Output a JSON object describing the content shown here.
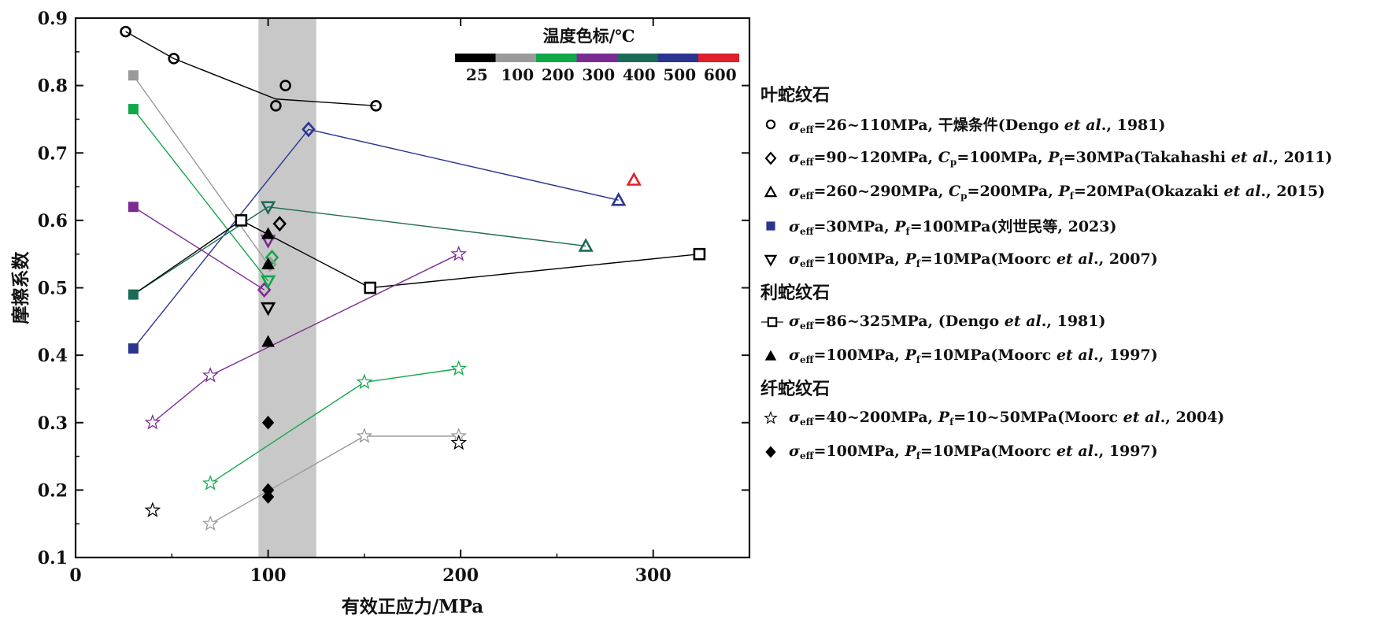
{
  "chart_data": {
    "type": "scatter",
    "xlabel": "有效正应力/MPa",
    "ylabel": "摩擦系数",
    "xlim": [
      0,
      350
    ],
    "ylim": [
      0.1,
      0.9
    ],
    "xticks": [
      0,
      100,
      200,
      300
    ],
    "yticks": [
      0.1,
      0.2,
      0.3,
      0.4,
      0.5,
      0.6,
      0.7,
      0.8,
      0.9
    ],
    "shaded_band": {
      "x": [
        95,
        125
      ]
    },
    "colorbar": {
      "title": "温度色标/℃",
      "labels": [
        "25",
        "100",
        "200",
        "300",
        "400",
        "500",
        "600"
      ],
      "colors": [
        "#000000",
        "#9a9a9a",
        "#11a84a",
        "#7b2c92",
        "#1c6b58",
        "#2a3590",
        "#e0202a"
      ]
    },
    "series": [
      {
        "marker": "circle",
        "color": "#000000",
        "temp": "25",
        "points": [
          [
            26,
            0.88
          ],
          [
            51,
            0.84
          ],
          [
            109,
            0.8
          ],
          [
            104,
            0.77
          ],
          [
            156,
            0.77
          ]
        ],
        "line": [
          [
            26,
            0.88
          ],
          [
            51,
            0.84
          ],
          [
            104,
            0.78
          ],
          [
            156,
            0.77
          ]
        ]
      },
      {
        "marker": "diamond",
        "color": "#2a3590",
        "temp": "500",
        "points": [
          [
            121,
            0.735
          ]
        ]
      },
      {
        "marker": "diamond",
        "color": "#000000",
        "temp": "25",
        "points": [
          [
            106,
            0.595
          ]
        ]
      },
      {
        "marker": "diamond",
        "color": "#11a84a",
        "temp": "200",
        "points": [
          [
            102,
            0.545
          ]
        ]
      },
      {
        "marker": "diamond",
        "color": "#9a9a9a",
        "temp": "100",
        "points": [
          [
            101,
            0.535
          ]
        ]
      },
      {
        "marker": "diamond",
        "color": "#7b2c92",
        "temp": "300",
        "points": [
          [
            98,
            0.497
          ]
        ]
      },
      {
        "marker": "triangle",
        "color": "#2a3590",
        "temp": "500",
        "points": [
          [
            282,
            0.63
          ]
        ]
      },
      {
        "marker": "triangle",
        "color": "#1c6b58",
        "temp": "400",
        "points": [
          [
            265,
            0.562
          ]
        ]
      },
      {
        "marker": "triangle",
        "color": "#e0202a",
        "temp": "600",
        "points": [
          [
            290,
            0.66
          ]
        ]
      },
      {
        "marker": "square",
        "color": "#2a3590",
        "temp": "500",
        "points": [
          [
            30,
            0.41
          ]
        ],
        "line": [
          [
            30,
            0.41
          ],
          [
            121,
            0.735
          ],
          [
            282,
            0.63
          ]
        ]
      },
      {
        "marker": "square",
        "color": "#1c6b58",
        "temp": "400",
        "points": [
          [
            30,
            0.49
          ]
        ],
        "line": [
          [
            30,
            0.49
          ],
          [
            100,
            0.62
          ],
          [
            265,
            0.562
          ]
        ]
      },
      {
        "marker": "square",
        "color": "#7b2c92",
        "temp": "300",
        "points": [
          [
            30,
            0.62
          ]
        ],
        "line": [
          [
            30,
            0.62
          ],
          [
            98,
            0.497
          ]
        ]
      },
      {
        "marker": "square",
        "color": "#11a84a",
        "temp": "200",
        "points": [
          [
            30,
            0.765
          ]
        ],
        "line": [
          [
            30,
            0.765
          ],
          [
            100,
            0.51
          ]
        ]
      },
      {
        "marker": "square",
        "color": "#9a9a9a",
        "temp": "100",
        "points": [
          [
            30,
            0.815
          ]
        ],
        "line": [
          [
            30,
            0.815
          ],
          [
            100,
            0.535
          ]
        ]
      },
      {
        "marker": "triangle-down",
        "color": "#1c6b58",
        "temp": "400",
        "points": [
          [
            100,
            0.62
          ]
        ]
      },
      {
        "marker": "triangle-down",
        "color": "#11a84a",
        "temp": "200",
        "points": [
          [
            100,
            0.51
          ]
        ]
      },
      {
        "marker": "triangle-down",
        "color": "#7b2c92",
        "temp": "300",
        "points": [
          [
            100,
            0.57
          ]
        ]
      },
      {
        "marker": "triangle-down",
        "color": "#000000",
        "temp": "25",
        "points": [
          [
            100,
            0.47
          ]
        ]
      },
      {
        "marker": "square-open",
        "color": "#000000",
        "temp": "25",
        "points": [
          [
            86,
            0.6
          ],
          [
            153,
            0.5
          ],
          [
            324,
            0.55
          ]
        ],
        "line": [
          [
            30,
            0.49
          ],
          [
            86,
            0.6
          ],
          [
            153,
            0.5
          ],
          [
            324,
            0.55
          ]
        ]
      },
      {
        "marker": "triangle-filled",
        "color": "#000000",
        "temp": "25",
        "points": [
          [
            100,
            0.58
          ],
          [
            100,
            0.535
          ],
          [
            100,
            0.42
          ]
        ]
      },
      {
        "marker": "star",
        "color": "#7b2c92",
        "temp": "300",
        "points": [
          [
            40,
            0.3
          ],
          [
            70,
            0.37
          ],
          [
            199,
            0.55
          ]
        ],
        "line": [
          [
            40,
            0.3
          ],
          [
            70,
            0.37
          ],
          [
            199,
            0.55
          ]
        ]
      },
      {
        "marker": "star",
        "color": "#11a84a",
        "temp": "200",
        "points": [
          [
            70,
            0.21
          ],
          [
            150,
            0.36
          ],
          [
            199,
            0.38
          ]
        ],
        "line": [
          [
            70,
            0.21
          ],
          [
            150,
            0.36
          ],
          [
            199,
            0.38
          ]
        ]
      },
      {
        "marker": "star",
        "color": "#9a9a9a",
        "temp": "100",
        "points": [
          [
            70,
            0.15
          ],
          [
            150,
            0.28
          ],
          [
            199,
            0.28
          ]
        ],
        "line": [
          [
            70,
            0.15
          ],
          [
            150,
            0.28
          ],
          [
            199,
            0.28
          ]
        ]
      },
      {
        "marker": "star",
        "color": "#000000",
        "temp": "25",
        "points": [
          [
            40,
            0.17
          ],
          [
            199,
            0.27
          ]
        ]
      },
      {
        "marker": "diamond-filled",
        "color": "#000000",
        "temp": "25",
        "points": [
          [
            100,
            0.3
          ],
          [
            100,
            0.2
          ],
          [
            100,
            0.19
          ]
        ]
      }
    ]
  },
  "legend": {
    "groups": [
      {
        "title": "叶蛇纹石",
        "entries": [
          {
            "icon": "circle",
            "html": "<i>σ</i><sub>eff</sub>=26~110MPa, 干燥条件(Dengo <i>et al</i>., 1981)"
          },
          {
            "icon": "diamond",
            "html": "<i>σ</i><sub>eff</sub>=90~120MPa, <i>C</i><sub>p</sub>=100MPa, <i>P</i><sub>f</sub>=30MPa(Takahashi <i>et al</i>., 2011)"
          },
          {
            "icon": "triangle",
            "html": "<i>σ</i><sub>eff</sub>=260~290MPa, <i>C</i><sub>p</sub>=200MPa, <i>P</i><sub>f</sub>=20MPa(Okazaki <i>et al</i>., 2015)"
          },
          {
            "icon": "square-filled-blue",
            "html": "<i>σ</i><sub>eff</sub>=30MPa, <i>P</i><sub>f</sub>=100MPa(刘世民等, 2023)"
          },
          {
            "icon": "triangle-down",
            "html": "<i>σ</i><sub>eff</sub>=100MPa, <i>P</i><sub>f</sub>=10MPa(Moorc <i>et al</i>., 2007)"
          }
        ]
      },
      {
        "title": "利蛇纹石",
        "entries": [
          {
            "icon": "square-open-line",
            "html": "<i>σ</i><sub>eff</sub>=86~325MPa, (Dengo <i>et al</i>., 1981)"
          },
          {
            "icon": "triangle-filled",
            "html": "<i>σ</i><sub>eff</sub>=100MPa, <i>P</i><sub>f</sub>=10MPa(Moorc <i>et al</i>., 1997)"
          }
        ]
      },
      {
        "title": "纤蛇纹石",
        "entries": [
          {
            "icon": "star",
            "html": "<i>σ</i><sub>eff</sub>=40~200MPa, <i>P</i><sub>f</sub>=10~50MPa(Moorc <i>et al</i>., 2004)"
          },
          {
            "icon": "diamond-filled",
            "html": "<i>σ</i><sub>eff</sub>=100MPa, <i>P</i><sub>f</sub>=10MPa(Moorc <i>et al</i>., 1997)"
          }
        ]
      }
    ]
  }
}
